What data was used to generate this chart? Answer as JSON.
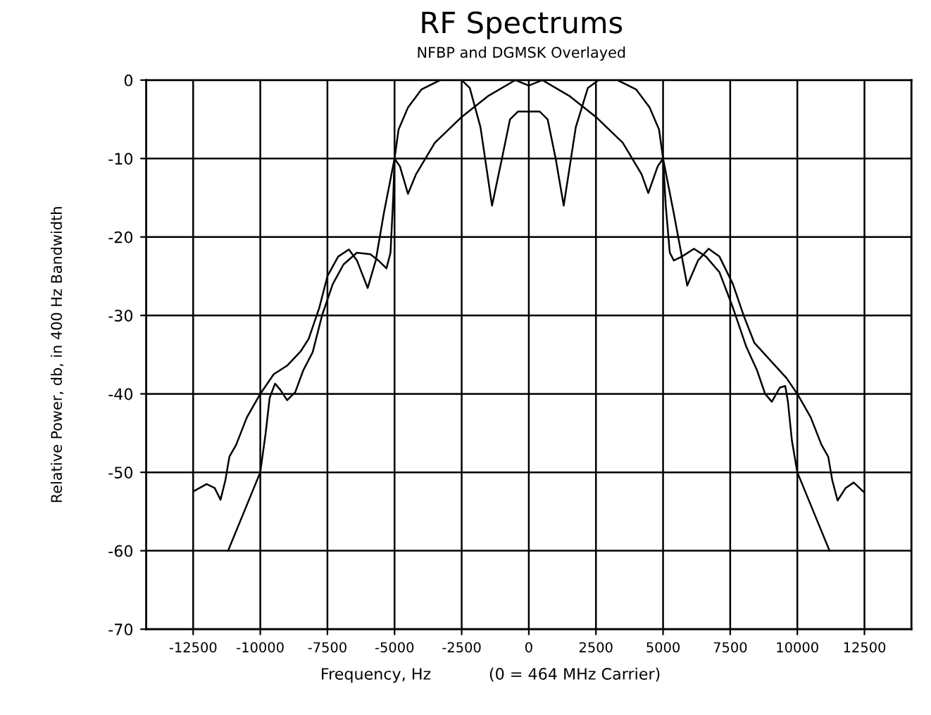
{
  "chart_data": {
    "type": "line",
    "title": "RF Spectrums",
    "subtitle": "NFBP and DGMSK Overlayed",
    "xlabel": "Frequency, Hz",
    "ylabel": "Relative Power, db, in 400 Hz Bandwidth",
    "annotations": [
      "(0 = 464 MHz Carrier)"
    ],
    "xlim": [
      -14250,
      14250
    ],
    "ylim": [
      -70,
      0
    ],
    "xticks": [
      -12500,
      -10000,
      -7500,
      -5000,
      -2500,
      0,
      2500,
      5000,
      7500,
      10000,
      12500
    ],
    "yticks": [
      -70,
      -60,
      -50,
      -40,
      -30,
      -20,
      -10,
      0
    ],
    "grid": true,
    "legend": false,
    "marker": "none",
    "line_style": "solid",
    "series": [
      {
        "color": "#000000",
        "x": [
          -11200,
          -10600,
          -10000,
          -9800,
          -9650,
          -9450,
          -9250,
          -9000,
          -8700,
          -8400,
          -8050,
          -7700,
          -7300,
          -6900,
          -6400,
          -5900,
          -5600,
          -5300,
          -5150,
          -5050,
          -5000,
          -4850,
          -4500,
          -4000,
          -3300,
          -2500,
          -2200,
          -1800,
          -1370,
          -1000,
          -700,
          -400,
          0,
          400,
          700,
          1000,
          1300,
          1750,
          2200,
          2600,
          3300,
          4000,
          4500,
          4850,
          5000,
          5100,
          5250,
          5400,
          5700,
          6150,
          6600,
          7100,
          7600,
          8100,
          8500,
          8800,
          9050,
          9350,
          9550,
          9650,
          9800,
          10000,
          10600,
          11200
        ],
        "values": [
          -60,
          -55,
          -50,
          -45,
          -40.5,
          -38.7,
          -39.5,
          -40.8,
          -39.8,
          -37,
          -34.7,
          -30,
          -26,
          -23.5,
          -22,
          -22.2,
          -23,
          -24,
          -22,
          -15,
          -10,
          -6.3,
          -3.5,
          -1.2,
          0,
          0,
          -1,
          -6,
          -16,
          -10,
          -5,
          -4,
          -4,
          -4,
          -5,
          -10,
          -16,
          -6,
          -1,
          0,
          0,
          -1.2,
          -3.5,
          -6.3,
          -10,
          -16,
          -22,
          -23,
          -22.5,
          -21.5,
          -22.5,
          -24.5,
          -29,
          -34,
          -37,
          -40,
          -41,
          -39.2,
          -39,
          -41,
          -46,
          -50,
          -55,
          -60
        ]
      },
      {
        "color": "#000000",
        "x": [
          -12470,
          -12000,
          -11700,
          -11480,
          -11300,
          -11150,
          -10900,
          -10500,
          -10000,
          -9500,
          -9000,
          -8500,
          -8200,
          -7800,
          -7500,
          -7100,
          -6700,
          -6400,
          -6000,
          -5700,
          -5400,
          -5000,
          -4800,
          -4500,
          -4200,
          -3500,
          -2500,
          -1500,
          -500,
          0,
          500,
          1500,
          2500,
          3500,
          4200,
          4450,
          4800,
          5000,
          5400,
          5900,
          6300,
          6700,
          7100,
          7600,
          8000,
          8400,
          8800,
          9200,
          9600,
          10000,
          10500,
          10900,
          11150,
          11300,
          11500,
          11800,
          12100,
          12470
        ],
        "values": [
          -52.4,
          -51.5,
          -52,
          -53.5,
          -51,
          -48,
          -46.5,
          -43,
          -40,
          -37.5,
          -36.4,
          -34.6,
          -33,
          -29,
          -25,
          -22.5,
          -21.6,
          -23,
          -26.5,
          -23,
          -17,
          -10,
          -11,
          -14.5,
          -12,
          -8,
          -4.7,
          -2,
          0,
          -0.7,
          0,
          -2,
          -4.7,
          -8,
          -12,
          -14.4,
          -11,
          -10,
          -17,
          -26.2,
          -23,
          -21.5,
          -22.5,
          -26,
          -30,
          -33.5,
          -35,
          -36.5,
          -38,
          -40,
          -43,
          -46.5,
          -48,
          -51,
          -53.6,
          -52,
          -51.3,
          -52.5
        ]
      }
    ]
  }
}
